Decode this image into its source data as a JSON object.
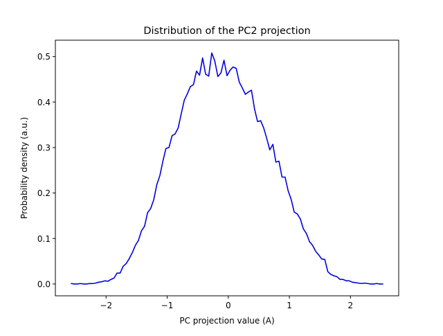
{
  "chart_data": {
    "type": "line",
    "title": "Distribution of the PC2 projection",
    "xlabel": "PC projection value (A)",
    "ylabel": "Probability density (a.u.)",
    "xlim": [
      -2.83,
      2.79
    ],
    "ylim": [
      -0.026,
      0.536
    ],
    "xticks": [
      -2,
      -1,
      0,
      1,
      2
    ],
    "xtick_labels": [
      "−2",
      "−1",
      "0",
      "1",
      "2"
    ],
    "yticks": [
      0.0,
      0.1,
      0.2,
      0.3,
      0.4,
      0.5
    ],
    "ytick_labels": [
      "0.0",
      "0.1",
      "0.2",
      "0.3",
      "0.4",
      "0.5"
    ],
    "grid": false,
    "legend": "none",
    "series": [
      {
        "color": "#0000dd",
        "x": [
          -2.57,
          -2.52,
          -2.47,
          -2.42,
          -2.37,
          -2.32,
          -2.27,
          -2.22,
          -2.17,
          -2.12,
          -2.07,
          -2.02,
          -1.97,
          -1.92,
          -1.87,
          -1.82,
          -1.77,
          -1.72,
          -1.67,
          -1.62,
          -1.57,
          -1.52,
          -1.47,
          -1.42,
          -1.37,
          -1.32,
          -1.27,
          -1.22,
          -1.17,
          -1.12,
          -1.07,
          -1.02,
          -0.97,
          -0.92,
          -0.87,
          -0.82,
          -0.77,
          -0.72,
          -0.67,
          -0.62,
          -0.57,
          -0.52,
          -0.47,
          -0.42,
          -0.37,
          -0.32,
          -0.27,
          -0.22,
          -0.17,
          -0.12,
          -0.07,
          -0.02,
          0.03,
          0.08,
          0.13,
          0.18,
          0.23,
          0.28,
          0.33,
          0.38,
          0.43,
          0.48,
          0.53,
          0.58,
          0.63,
          0.68,
          0.73,
          0.78,
          0.83,
          0.88,
          0.93,
          0.98,
          1.03,
          1.08,
          1.13,
          1.18,
          1.23,
          1.28,
          1.33,
          1.38,
          1.43,
          1.48,
          1.53,
          1.58,
          1.63,
          1.68,
          1.73,
          1.78,
          1.83,
          1.88,
          1.93,
          1.98,
          2.03,
          2.08,
          2.13,
          2.18,
          2.23,
          2.28,
          2.33,
          2.38,
          2.43,
          2.48,
          2.53
        ],
        "y": [
          0.001,
          0.0,
          0.0,
          0.001,
          0.0,
          0.0,
          0.001,
          0.001,
          0.002,
          0.004,
          0.005,
          0.007,
          0.006,
          0.01,
          0.013,
          0.024,
          0.024,
          0.039,
          0.045,
          0.056,
          0.069,
          0.085,
          0.096,
          0.117,
          0.127,
          0.157,
          0.166,
          0.185,
          0.218,
          0.238,
          0.27,
          0.298,
          0.3,
          0.326,
          0.33,
          0.343,
          0.374,
          0.404,
          0.418,
          0.434,
          0.438,
          0.468,
          0.459,
          0.497,
          0.461,
          0.457,
          0.508,
          0.49,
          0.456,
          0.464,
          0.492,
          0.458,
          0.47,
          0.477,
          0.474,
          0.444,
          0.431,
          0.417,
          0.422,
          0.426,
          0.385,
          0.357,
          0.359,
          0.343,
          0.32,
          0.295,
          0.307,
          0.268,
          0.27,
          0.235,
          0.235,
          0.205,
          0.186,
          0.158,
          0.154,
          0.143,
          0.121,
          0.111,
          0.093,
          0.085,
          0.072,
          0.064,
          0.055,
          0.054,
          0.027,
          0.021,
          0.018,
          0.016,
          0.01,
          0.01,
          0.007,
          0.007,
          0.004,
          0.003,
          0.002,
          0.001,
          0.002,
          0.001,
          0.0,
          0.0,
          0.001,
          0.0,
          0.0
        ]
      }
    ]
  }
}
